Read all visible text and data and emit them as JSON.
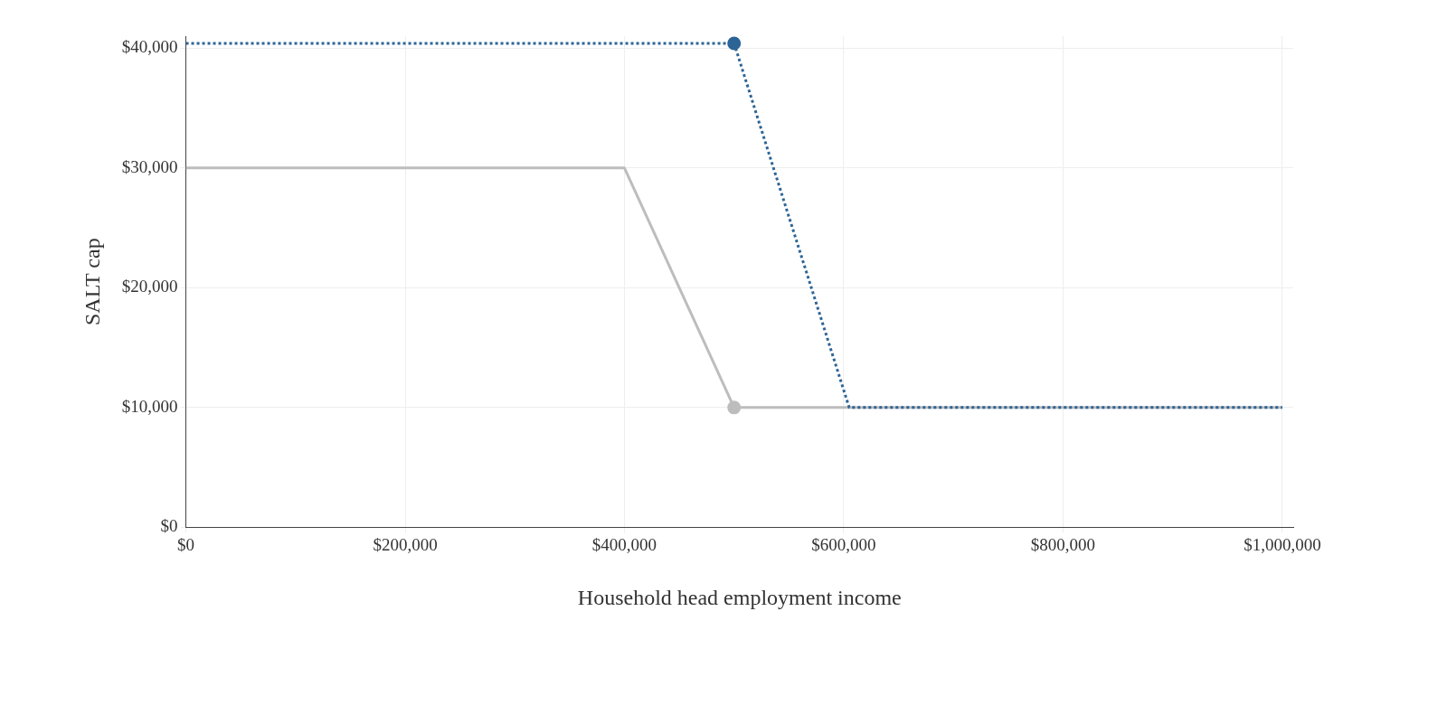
{
  "chart_data": {
    "type": "line",
    "xlabel": "Household head employment income",
    "ylabel": "SALT cap",
    "series": [
      {
        "color": "#bdbdbd",
        "x": [
          0,
          400000,
          500000,
          1000000
        ],
        "values": [
          30000,
          30000,
          10000,
          10000
        ],
        "line_style": "solid"
      },
      {
        "color": "#2c6496",
        "x": [
          0,
          500000,
          605000,
          1000000
        ],
        "values": [
          40400,
          40400,
          10000,
          10000
        ],
        "line_style": "dotted"
      },
      {
        "type": "scatter",
        "color": "#bdbdbd",
        "x": [
          500000
        ],
        "values": [
          10000
        ],
        "marker": "circle"
      },
      {
        "type": "scatter",
        "color": "#2c6496",
        "x": [
          500000
        ],
        "values": [
          40400
        ],
        "marker": "circle"
      }
    ],
    "xlim": [
      0,
      1010000
    ],
    "ylim": [
      0,
      41000
    ],
    "xticks": [
      {
        "value": 0,
        "label": "$0"
      },
      {
        "value": 200000,
        "label": "$200,000"
      },
      {
        "value": 400000,
        "label": "$400,000"
      },
      {
        "value": 600000,
        "label": "$600,000"
      },
      {
        "value": 800000,
        "label": "$800,000"
      },
      {
        "value": 1000000,
        "label": "$1,000,000"
      }
    ],
    "yticks": [
      {
        "value": 0,
        "label": "$0"
      },
      {
        "value": 10000,
        "label": "$10,000"
      },
      {
        "value": 20000,
        "label": "$20,000"
      },
      {
        "value": 30000,
        "label": "$30,000"
      },
      {
        "value": 40000,
        "label": "$40,000"
      }
    ],
    "grid": true,
    "legend": false
  }
}
